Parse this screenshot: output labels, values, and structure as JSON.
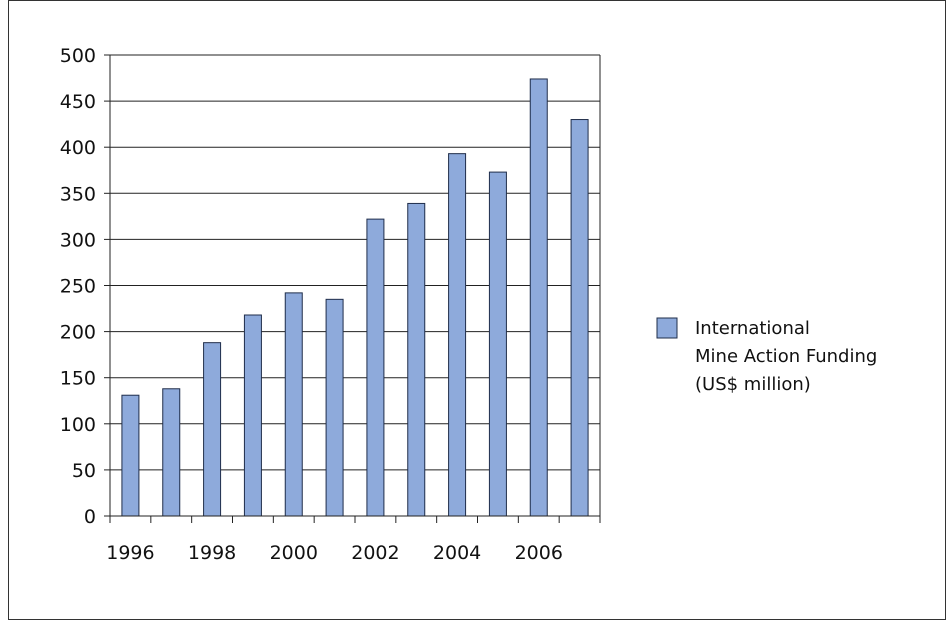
{
  "chart_data": {
    "type": "bar",
    "categories": [
      "1996",
      "1997",
      "1998",
      "1999",
      "2000",
      "2001",
      "2002",
      "2003",
      "2004",
      "2005",
      "2006",
      "2007"
    ],
    "x_tick_labels": [
      "1996",
      "1998",
      "2000",
      "2002",
      "2004",
      "2006"
    ],
    "y_tick_labels": [
      "0",
      "50",
      "100",
      "150",
      "200",
      "250",
      "300",
      "350",
      "400",
      "450",
      "500"
    ],
    "series": [
      {
        "name": "International Mine Action Funding (US$ million)",
        "values": [
          131,
          138,
          188,
          218,
          242,
          235,
          322,
          339,
          393,
          373,
          474,
          430
        ]
      }
    ],
    "ylim": [
      0,
      500
    ],
    "ytick_step": 50,
    "grid": true,
    "legend_position": "right",
    "legend_lines": [
      "International",
      "Mine Action Funding",
      "(US$ million)"
    ],
    "bar_color": "#8eaadb",
    "bar_edge_color": "#1f2d4a"
  }
}
